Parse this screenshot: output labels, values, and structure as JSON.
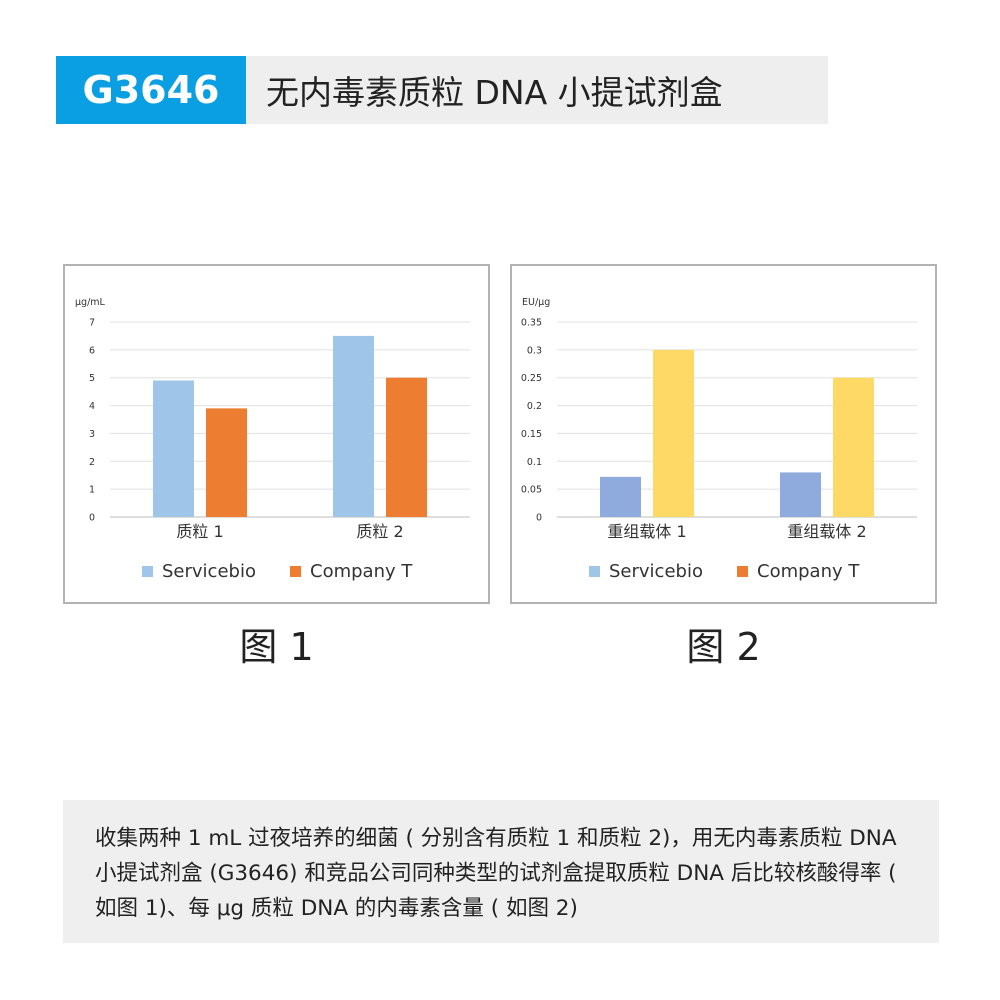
{
  "header": {
    "code": "G3646",
    "title": "无内毒素质粒 DNA 小提试剂盒"
  },
  "figures": [
    {
      "caption": "图 1"
    },
    {
      "caption": "图 2"
    }
  ],
  "chart_data": [
    {
      "type": "bar",
      "ylabel": "μg/mL",
      "ylim": [
        0,
        7
      ],
      "yticks": [
        "0",
        "1",
        "2",
        "3",
        "4",
        "5",
        "6",
        "7"
      ],
      "categories": [
        "质粒 1",
        "质粒 2"
      ],
      "series": [
        {
          "name": "Servicebio",
          "values": [
            4.9,
            6.5
          ],
          "color": "#9fc5e8"
        },
        {
          "name": "Company T",
          "values": [
            3.9,
            5.0
          ],
          "color": "#ed7d31"
        }
      ],
      "grid": true,
      "legend": "bottom"
    },
    {
      "type": "bar",
      "ylabel": "EU/μg",
      "ylim": [
        0,
        0.35
      ],
      "yticks": [
        "0",
        "0.05",
        "0.1",
        "0.15",
        "0.2",
        "0.25",
        "0.3",
        "0.35"
      ],
      "categories": [
        "重组载体 1",
        "重组载体 2"
      ],
      "series": [
        {
          "name": "Servicebio",
          "values": [
            0.072,
            0.08
          ],
          "color": "#8faadc",
          "legend_color": "#9fc5e8"
        },
        {
          "name": "Company T",
          "values": [
            0.3,
            0.25
          ],
          "color": "#ffd966",
          "legend_color": "#ed7d31"
        }
      ],
      "grid": true,
      "legend": "bottom"
    }
  ],
  "description": "收集两种 1 mL 过夜培养的细菌 ( 分别含有质粒 1 和质粒 2)，用无内毒素质粒 DNA 小提试剂盒 (G3646) 和竞品公司同种类型的试剂盒提取质粒 DNA 后比较核酸得率 ( 如图 1)、每 μg 质粒 DNA 的内毒素含量 ( 如图 2)"
}
